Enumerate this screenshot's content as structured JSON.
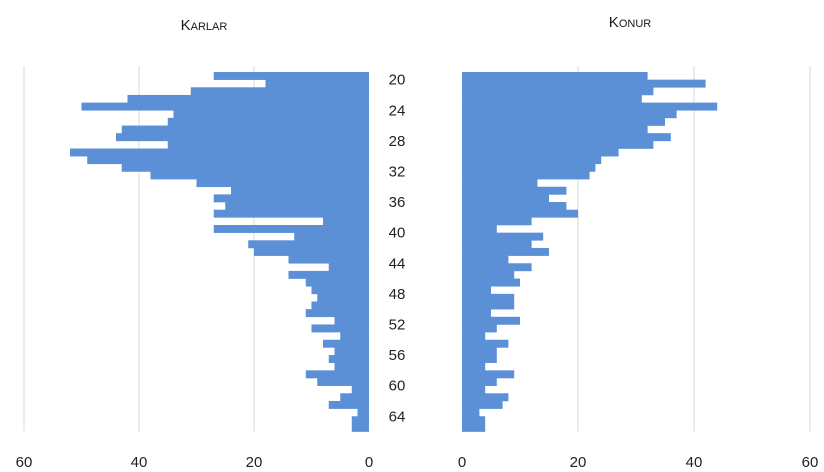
{
  "chart_data": [
    {
      "type": "bar",
      "orientation": "horizontal",
      "direction": "right-to-left",
      "title": "Karlar",
      "xlim": [
        0,
        60
      ],
      "xticks": [
        "60",
        "40",
        "20",
        "0"
      ],
      "grid": "vertical",
      "color": "#5b8fd6",
      "categories": [
        20,
        21,
        22,
        23,
        24,
        25,
        26,
        27,
        28,
        29,
        30,
        31,
        32,
        33,
        34,
        35,
        36,
        37,
        38,
        39,
        40,
        41,
        42,
        43,
        44,
        45,
        46,
        47,
        48,
        49,
        50,
        51,
        52,
        53,
        54,
        55,
        56,
        57,
        58,
        59,
        60,
        61,
        62,
        63,
        64,
        65,
        66
      ],
      "values": [
        27,
        18,
        31,
        42,
        50,
        34,
        35,
        43,
        44,
        35,
        52,
        49,
        43,
        38,
        30,
        24,
        27,
        25,
        27,
        8,
        27,
        13,
        21,
        20,
        14,
        7,
        14,
        11,
        10,
        9,
        10,
        11,
        6,
        10,
        5,
        8,
        6,
        7,
        6,
        11,
        9,
        3,
        5,
        7,
        2,
        3,
        3
      ]
    },
    {
      "type": "bar",
      "orientation": "horizontal",
      "direction": "left-to-right",
      "title": "Konur",
      "xlim": [
        0,
        60
      ],
      "xticks": [
        "0",
        "20",
        "40",
        "60"
      ],
      "grid": "vertical",
      "color": "#5b8fd6",
      "categories": [
        20,
        21,
        22,
        23,
        24,
        25,
        26,
        27,
        28,
        29,
        30,
        31,
        32,
        33,
        34,
        35,
        36,
        37,
        38,
        39,
        40,
        41,
        42,
        43,
        44,
        45,
        46,
        47,
        48,
        49,
        50,
        51,
        52,
        53,
        54,
        55,
        56,
        57,
        58,
        59,
        60,
        61,
        62,
        63,
        64,
        65,
        66
      ],
      "values": [
        32,
        42,
        33,
        31,
        44,
        37,
        35,
        32,
        36,
        33,
        27,
        24,
        23,
        22,
        13,
        18,
        15,
        18,
        20,
        12,
        6,
        14,
        12,
        15,
        8,
        12,
        9,
        10,
        5,
        9,
        9,
        5,
        10,
        6,
        4,
        8,
        6,
        6,
        4,
        9,
        6,
        4,
        8,
        7,
        3,
        4,
        4
      ]
    }
  ],
  "age_labels": [
    "20",
    "24",
    "28",
    "32",
    "36",
    "40",
    "44",
    "48",
    "52",
    "56",
    "60",
    "64"
  ]
}
